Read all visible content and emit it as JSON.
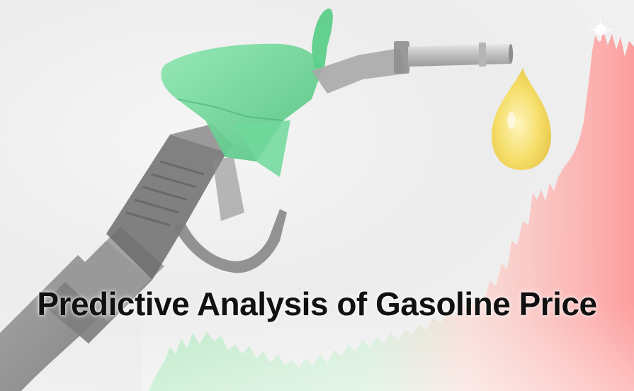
{
  "banner": {
    "title": "Predictive Analysis of Gasoline Price"
  },
  "graphics": {
    "nozzle_icon": "fuel-nozzle-icon",
    "drop_icon": "fuel-drop-icon",
    "trend_icon": "price-trend-area",
    "colors": {
      "nozzle_green": "#6fd89a",
      "hose_gray": "#8a8a8a",
      "drop_yellow": "#f2d34a",
      "trend_green": "#8fe6a6",
      "trend_red": "#ff8f8f"
    }
  }
}
